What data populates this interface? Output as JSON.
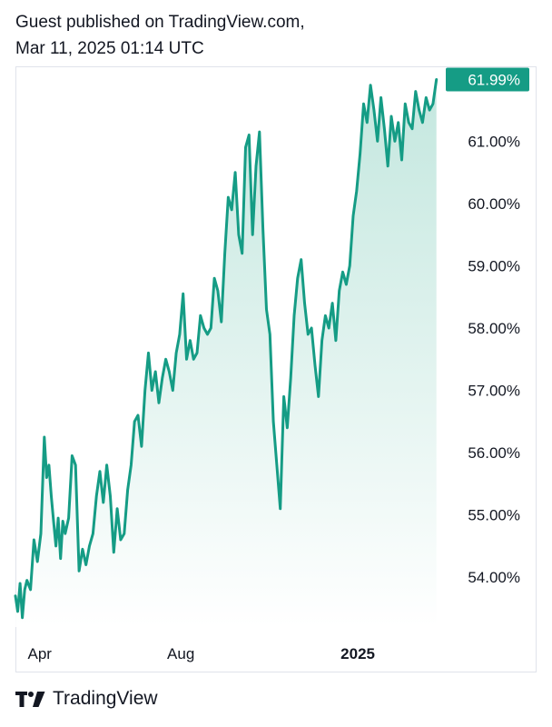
{
  "header": {
    "line1": "Guest published on TradingView.com,",
    "line2": "Mar 11, 2025 01:14 UTC"
  },
  "footer": {
    "brand": "TradingView",
    "logo_icon": "tradingview-logo-icon"
  },
  "colors": {
    "line": "#159c85",
    "fill_top": "#b9e3d9",
    "fill_bottom": "#ffffff",
    "badge_bg": "#159c85",
    "badge_text": "#ffffff",
    "axis_text": "#131722",
    "border": "#e0e3eb"
  },
  "chart_data": {
    "type": "area",
    "title": "",
    "xlabel": "",
    "ylabel": "",
    "y_unit": "%",
    "ylim": [
      53.2,
      62.1
    ],
    "y_ticks": [
      54,
      55,
      56,
      57,
      58,
      59,
      60,
      61
    ],
    "y_tick_labels": [
      "54.00%",
      "55.00%",
      "56.00%",
      "57.00%",
      "58.00%",
      "59.00%",
      "60.00%",
      "61.00%"
    ],
    "x_range": [
      "2024-03-11",
      "2025-03-11"
    ],
    "x_ticks": [
      {
        "label": "Apr",
        "date": "2024-04-01",
        "bold": false
      },
      {
        "label": "Aug",
        "date": "2024-08-01",
        "bold": false
      },
      {
        "label": "2025",
        "date": "2025-01-01",
        "bold": true
      }
    ],
    "last_value_label": "61.99%",
    "grid": false,
    "series": [
      {
        "x": [
          "2024-03-11",
          "2024-03-13",
          "2024-03-15",
          "2024-03-17",
          "2024-03-19",
          "2024-03-21",
          "2024-03-24",
          "2024-03-27",
          "2024-03-30",
          "2024-04-02",
          "2024-04-05",
          "2024-04-07",
          "2024-04-09",
          "2024-04-11",
          "2024-04-13",
          "2024-04-15",
          "2024-04-17",
          "2024-04-19",
          "2024-04-21",
          "2024-04-23",
          "2024-04-26",
          "2024-04-29",
          "2024-05-02",
          "2024-05-05",
          "2024-05-08",
          "2024-05-11",
          "2024-05-14",
          "2024-05-17",
          "2024-05-20",
          "2024-05-23",
          "2024-05-26",
          "2024-05-29",
          "2024-06-01",
          "2024-06-04",
          "2024-06-07",
          "2024-06-10",
          "2024-06-13",
          "2024-06-16",
          "2024-06-19",
          "2024-06-22",
          "2024-06-25",
          "2024-06-28",
          "2024-07-01",
          "2024-07-04",
          "2024-07-07",
          "2024-07-10",
          "2024-07-13",
          "2024-07-16",
          "2024-07-19",
          "2024-07-22",
          "2024-07-25",
          "2024-07-28",
          "2024-07-31",
          "2024-08-03",
          "2024-08-06",
          "2024-08-09",
          "2024-08-12",
          "2024-08-15",
          "2024-08-18",
          "2024-08-21",
          "2024-08-24",
          "2024-08-27",
          "2024-08-30",
          "2024-09-02",
          "2024-09-05",
          "2024-09-08",
          "2024-09-11",
          "2024-09-14",
          "2024-09-17",
          "2024-09-20",
          "2024-09-23",
          "2024-09-26",
          "2024-09-29",
          "2024-10-02",
          "2024-10-05",
          "2024-10-08",
          "2024-10-11",
          "2024-10-14",
          "2024-10-17",
          "2024-10-20",
          "2024-10-23",
          "2024-10-26",
          "2024-10-29",
          "2024-11-01",
          "2024-11-04",
          "2024-11-07",
          "2024-11-10",
          "2024-11-13",
          "2024-11-16",
          "2024-11-19",
          "2024-11-22",
          "2024-11-25",
          "2024-11-28",
          "2024-12-01",
          "2024-12-04",
          "2024-12-07",
          "2024-12-10",
          "2024-12-13",
          "2024-12-16",
          "2024-12-19",
          "2024-12-22",
          "2024-12-25",
          "2024-12-28",
          "2024-12-31",
          "2025-01-03",
          "2025-01-06",
          "2025-01-09",
          "2025-01-12",
          "2025-01-15",
          "2025-01-18",
          "2025-01-21",
          "2025-01-24",
          "2025-01-27",
          "2025-01-30",
          "2025-02-02",
          "2025-02-05",
          "2025-02-08",
          "2025-02-11",
          "2025-02-14",
          "2025-02-17",
          "2025-02-20",
          "2025-02-23",
          "2025-02-26",
          "2025-03-01",
          "2025-03-04",
          "2025-03-07",
          "2025-03-10"
        ],
        "y": [
          53.7,
          53.45,
          53.9,
          53.35,
          53.8,
          53.95,
          53.8,
          54.6,
          54.25,
          54.7,
          56.25,
          55.6,
          55.8,
          55.3,
          54.9,
          54.5,
          54.95,
          54.3,
          54.9,
          54.7,
          54.95,
          55.95,
          55.8,
          54.1,
          54.45,
          54.2,
          54.5,
          54.7,
          55.3,
          55.7,
          55.2,
          55.8,
          55.3,
          54.4,
          55.1,
          54.6,
          54.7,
          55.4,
          55.8,
          56.5,
          56.6,
          56.1,
          57.0,
          57.6,
          57.0,
          57.3,
          56.8,
          57.2,
          57.5,
          57.3,
          57.0,
          57.6,
          57.9,
          58.55,
          57.5,
          57.8,
          57.5,
          57.6,
          58.2,
          58.0,
          57.9,
          58.0,
          58.8,
          58.6,
          58.1,
          59.2,
          60.1,
          59.9,
          60.5,
          59.5,
          59.2,
          60.9,
          61.1,
          59.5,
          60.6,
          61.15,
          59.6,
          58.3,
          57.9,
          56.5,
          55.8,
          55.1,
          56.9,
          56.4,
          57.2,
          58.2,
          58.8,
          59.1,
          58.4,
          57.9,
          58.0,
          57.4,
          56.9,
          57.8,
          58.2,
          58.0,
          58.4,
          57.8,
          58.6,
          58.9,
          58.7,
          59.0,
          59.8,
          60.2,
          60.8,
          61.6,
          61.3,
          61.9,
          61.5,
          61.0,
          61.7,
          61.2,
          60.6,
          61.4,
          61.0,
          61.3,
          60.7,
          61.6,
          61.3,
          61.2,
          61.8,
          61.5,
          61.3,
          61.7,
          61.5,
          61.6,
          61.99
        ]
      }
    ]
  }
}
